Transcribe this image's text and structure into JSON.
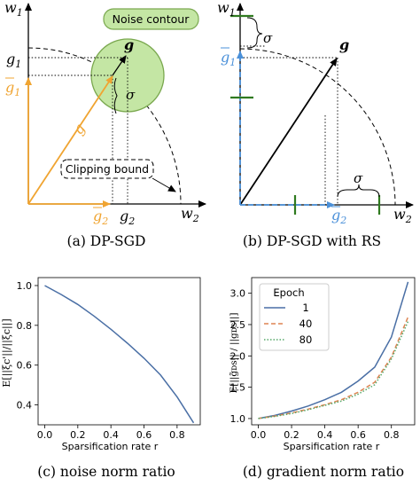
{
  "colors": {
    "orange": "#f0a431",
    "blue": "#4a90d9",
    "green_fill": "#c4e6a4",
    "green_stroke": "#7aa84f",
    "tick_green": "#2f7a1f",
    "series_1": "#4a6fa5",
    "series_40": "#dd8452",
    "series_80": "#55a868"
  },
  "panel_a": {
    "caption": "(a) DP-SGD",
    "noise_contour_label": "Noise contour",
    "clipping_bound_label": "Clipping bound",
    "w1": "w",
    "w1_sub": "1",
    "w2": "w",
    "w2_sub": "2",
    "g": "g",
    "g1": "g",
    "g1_sub": "1",
    "g2": "g",
    "g2_sub": "2",
    "g_bar": "g",
    "g1_bar": "g",
    "g1_bar_sub": "1",
    "g2_bar": "g",
    "g2_bar_sub": "2",
    "sigma": "σ"
  },
  "panel_b": {
    "caption": "(b) DP-SGD with RS",
    "w1": "w",
    "w1_sub": "1",
    "w2": "w",
    "w2_sub": "2",
    "g": "g",
    "g1_bar": "g",
    "g1_bar_sub": "1",
    "g2_bar": "g",
    "g2_bar_sub": "2",
    "sigma_top": "σ",
    "sigma_right": "σ"
  },
  "panel_c": {
    "caption": "(c)  noise norm ratio",
    "xlabel": "Sparsification rate r",
    "ylabel": "E[||ξc'||/||ξc||]"
  },
  "panel_d": {
    "caption": "(d)  gradient norm ratio",
    "xlabel": "Sparsification rate r",
    "ylabel": "E[||g̃ᴅs|| / ||gᴅs||]",
    "legend_title": "Epoch"
  },
  "chart_data": [
    {
      "type": "line",
      "title": "",
      "xlabel": "Sparsification rate r",
      "ylabel": "E[||ξc'||/||ξc||]",
      "xlim": [
        -0.04,
        0.94
      ],
      "ylim": [
        0.3,
        1.04
      ],
      "xticks": [
        "0.0",
        "0.2",
        "0.4",
        "0.6",
        "0.8"
      ],
      "yticks": [
        "0.4",
        "0.6",
        "0.8",
        "1.0"
      ],
      "grid": false,
      "series": [
        {
          "x": [
            0.0,
            0.1,
            0.2,
            0.3,
            0.4,
            0.5,
            0.6,
            0.7,
            0.8,
            0.9
          ],
          "values": [
            1.0,
            0.955,
            0.905,
            0.845,
            0.78,
            0.71,
            0.635,
            0.55,
            0.44,
            0.31
          ]
        }
      ]
    },
    {
      "type": "line",
      "title": "",
      "xlabel": "Sparsification rate r",
      "ylabel": "E[||g̃ᴅs|| / ||gᴅs||]",
      "xlim": [
        -0.04,
        0.94
      ],
      "ylim": [
        0.9,
        3.25
      ],
      "xticks": [
        "0.0",
        "0.2",
        "0.4",
        "0.6",
        "0.8"
      ],
      "yticks": [
        "1.0",
        "1.5",
        "2.0",
        "2.5",
        "3.0"
      ],
      "grid": false,
      "legend": "top-left",
      "legend_title": "Epoch",
      "series": [
        {
          "name": "1",
          "style": "solid",
          "x": [
            0.0,
            0.1,
            0.2,
            0.3,
            0.4,
            0.5,
            0.6,
            0.7,
            0.8,
            0.9
          ],
          "values": [
            1.0,
            1.05,
            1.12,
            1.2,
            1.3,
            1.42,
            1.6,
            1.82,
            2.3,
            3.18
          ]
        },
        {
          "name": "40",
          "style": "dashed",
          "x": [
            0.0,
            0.1,
            0.2,
            0.3,
            0.4,
            0.5,
            0.6,
            0.7,
            0.8,
            0.9
          ],
          "values": [
            1.0,
            1.04,
            1.09,
            1.15,
            1.22,
            1.3,
            1.42,
            1.58,
            1.98,
            2.62
          ]
        },
        {
          "name": "80",
          "style": "dotted",
          "x": [
            0.0,
            0.1,
            0.2,
            0.3,
            0.4,
            0.5,
            0.6,
            0.7,
            0.8,
            0.9
          ],
          "values": [
            1.0,
            1.035,
            1.08,
            1.14,
            1.21,
            1.28,
            1.39,
            1.54,
            1.95,
            2.55
          ]
        }
      ]
    }
  ]
}
